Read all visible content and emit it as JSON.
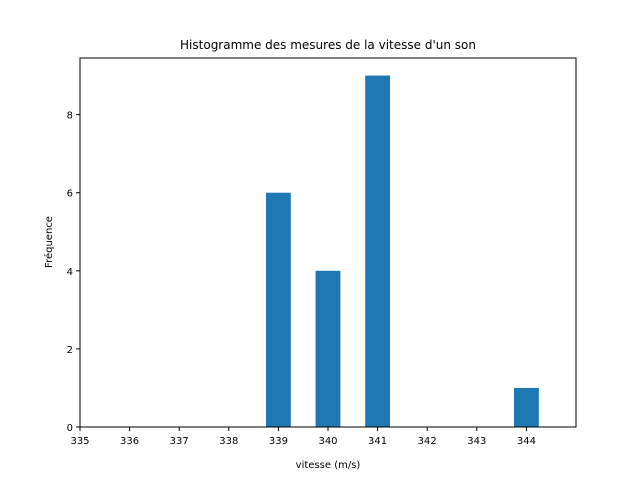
{
  "chart_data": {
    "type": "bar",
    "title": "Histogramme des mesures de la vitesse d'un son",
    "xlabel": "vitesse (m/s)",
    "ylabel": "Fréquence",
    "xlim": [
      335,
      345
    ],
    "ylim": [
      0,
      9.45
    ],
    "x_ticks": [
      335,
      336,
      337,
      338,
      339,
      340,
      341,
      342,
      343,
      344
    ],
    "y_ticks": [
      0,
      2,
      4,
      6,
      8
    ],
    "bar_width": 0.5,
    "grid": false,
    "bars": [
      {
        "x": 339,
        "value": 6
      },
      {
        "x": 340,
        "value": 4
      },
      {
        "x": 341,
        "value": 9
      },
      {
        "x": 344,
        "value": 1
      }
    ],
    "colors": {
      "bar": "#1f77b4",
      "axes": "#000000"
    }
  }
}
